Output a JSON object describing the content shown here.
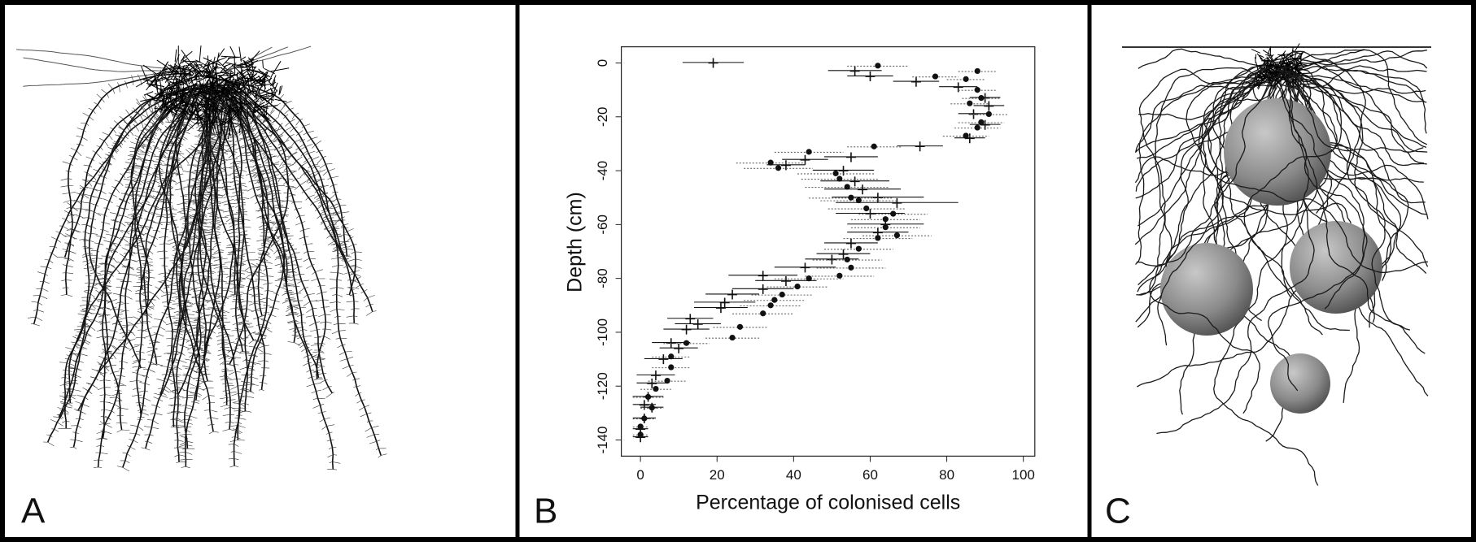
{
  "panel_labels": [
    "A",
    "B",
    "C"
  ],
  "chart_data": {
    "type": "scatter",
    "xlabel": "Percentage of colonised cells",
    "ylabel": "Depth (cm)",
    "xlim": [
      -5,
      103
    ],
    "ylim": [
      -146,
      6
    ],
    "xticks": [
      0,
      20,
      40,
      60,
      80,
      100
    ],
    "yticks": [
      0,
      -20,
      -40,
      -60,
      -80,
      -100,
      -120,
      -140
    ],
    "grid": false,
    "series": [
      {
        "color": "#111111",
        "marker": "cross",
        "errstyle": "solid",
        "x": [
          19,
          56,
          60,
          72,
          83,
          90,
          91,
          87,
          90,
          86,
          73,
          55,
          43,
          38,
          53,
          56,
          58,
          62,
          67,
          60,
          64,
          62,
          55,
          53,
          50,
          43,
          32,
          38,
          32,
          24,
          22,
          21,
          13,
          15,
          12,
          8,
          10,
          6,
          4,
          3,
          2,
          1,
          3,
          1,
          0,
          0
        ],
        "y": [
          0,
          -3,
          -5,
          -7,
          -9,
          -13,
          -16,
          -19,
          -23,
          -28,
          -31,
          -35,
          -36,
          -38,
          -40,
          -44,
          -47,
          -50,
          -52,
          -56,
          -60,
          -63,
          -67,
          -71,
          -73,
          -76,
          -79,
          -81,
          -84,
          -86,
          -89,
          -91,
          -95,
          -97,
          -99,
          -104,
          -106,
          -110,
          -116,
          -119,
          -124,
          -127,
          -128,
          -132,
          -136,
          -139
        ],
        "xerr": [
          8,
          7,
          6,
          6,
          5,
          4,
          4,
          4,
          4,
          4,
          6,
          7,
          6,
          5,
          8,
          9,
          10,
          12,
          16,
          9,
          10,
          8,
          7,
          7,
          7,
          8,
          9,
          8,
          8,
          7,
          8,
          7,
          6,
          6,
          6,
          5,
          5,
          5,
          5,
          4,
          4,
          3,
          3,
          3,
          2,
          2
        ]
      },
      {
        "color": "#111111",
        "marker": "dot",
        "errstyle": "dashed",
        "x": [
          62,
          88,
          77,
          85,
          88,
          89,
          86,
          91,
          89,
          88,
          85,
          61,
          44,
          34,
          36,
          51,
          52,
          54,
          55,
          57,
          59,
          66,
          64,
          64,
          67,
          62,
          57,
          54,
          55,
          52,
          44,
          41,
          37,
          35,
          34,
          32,
          26,
          24,
          12,
          8,
          8,
          7,
          4,
          2,
          3,
          1,
          0,
          0
        ],
        "y": [
          -1,
          -3,
          -5,
          -6,
          -10,
          -13,
          -15,
          -19,
          -22,
          -24,
          -27,
          -31,
          -33,
          -37,
          -39,
          -41,
          -43,
          -46,
          -50,
          -51,
          -54,
          -56,
          -58,
          -61,
          -64,
          -65,
          -69,
          -73,
          -76,
          -79,
          -80,
          -83,
          -86,
          -88,
          -90,
          -93,
          -98,
          -102,
          -104,
          -109,
          -113,
          -118,
          -121,
          -124,
          -128,
          -132,
          -135,
          -138
        ],
        "xerr": [
          8,
          5,
          6,
          5,
          5,
          5,
          5,
          5,
          6,
          6,
          6,
          7,
          9,
          9,
          9,
          10,
          10,
          11,
          11,
          10,
          10,
          9,
          9,
          9,
          9,
          9,
          9,
          9,
          9,
          9,
          9,
          8,
          8,
          8,
          8,
          8,
          7,
          7,
          6,
          5,
          5,
          5,
          4,
          4,
          3,
          3,
          2,
          2
        ]
      }
    ]
  }
}
